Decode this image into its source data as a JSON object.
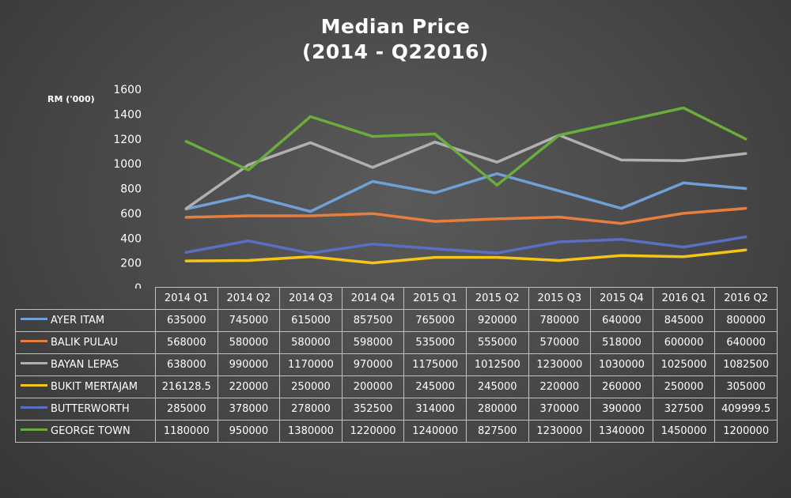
{
  "chart_data": {
    "type": "line",
    "title_lines": [
      "Median Price",
      "(2014 - Q22016)"
    ],
    "ylabel": "RM ('000)",
    "xlabel": "",
    "ylim": [
      0,
      1600
    ],
    "yticks": [
      0,
      200,
      400,
      600,
      800,
      1000,
      1200,
      1400,
      1600
    ],
    "grid": false,
    "legend": "data-table-below",
    "categories": [
      "2014 Q1",
      "2014 Q2",
      "2014 Q3",
      "2014 Q4",
      "2015 Q1",
      "2015 Q2",
      "2015 Q3",
      "2015 Q4",
      "2016 Q1",
      "2016 Q2"
    ],
    "series": [
      {
        "name": "AYER ITAM",
        "color": "#6fa0d6",
        "values": [
          635000,
          745000,
          615000,
          857500,
          765000,
          920000,
          780000,
          640000,
          845000,
          800000
        ],
        "display": [
          "635000",
          "745000",
          "615000",
          "857500",
          "765000",
          "920000",
          "780000",
          "640000",
          "845000",
          "800000"
        ]
      },
      {
        "name": "BALIK PULAU",
        "color": "#e97d3e",
        "values": [
          568000,
          580000,
          580000,
          598000,
          535000,
          555000,
          570000,
          518000,
          600000,
          640000
        ],
        "display": [
          "568000",
          "580000",
          "580000",
          "598000",
          "535000",
          "555000",
          "570000",
          "518000",
          "600000",
          "640000"
        ]
      },
      {
        "name": "BAYAN LEPAS",
        "color": "#b0b0b0",
        "values": [
          638000,
          990000,
          1170000,
          970000,
          1175000,
          1012500,
          1230000,
          1030000,
          1025000,
          1082500
        ],
        "display": [
          "638000",
          "990000",
          "1170000",
          "970000",
          "1175000",
          "1012500",
          "1230000",
          "1030000",
          "1025000",
          "1082500"
        ]
      },
      {
        "name": "BUKIT MERTAJAM",
        "color": "#f5c518",
        "values": [
          216128.5,
          220000,
          250000,
          200000,
          245000,
          245000,
          220000,
          260000,
          250000,
          305000
        ],
        "display": [
          "216128.5",
          "220000",
          "250000",
          "200000",
          "245000",
          "245000",
          "220000",
          "260000",
          "250000",
          "305000"
        ]
      },
      {
        "name": "BUTTERWORTH",
        "color": "#5a6fc4",
        "values": [
          285000,
          378000,
          278000,
          352500,
          314000,
          280000,
          370000,
          390000,
          327500,
          409999.5
        ],
        "display": [
          "285000",
          "378000",
          "278000",
          "352500",
          "314000",
          "280000",
          "370000",
          "390000",
          "327500",
          "409999.5"
        ]
      },
      {
        "name": "GEORGE TOWN",
        "color": "#6aad3d",
        "values": [
          1180000,
          950000,
          1380000,
          1220000,
          1240000,
          827500,
          1230000,
          1340000,
          1450000,
          1200000
        ],
        "display": [
          "1180000",
          "950000",
          "1380000",
          "1220000",
          "1240000",
          "827500",
          "1230000",
          "1340000",
          "1450000",
          "1200000"
        ]
      }
    ]
  }
}
